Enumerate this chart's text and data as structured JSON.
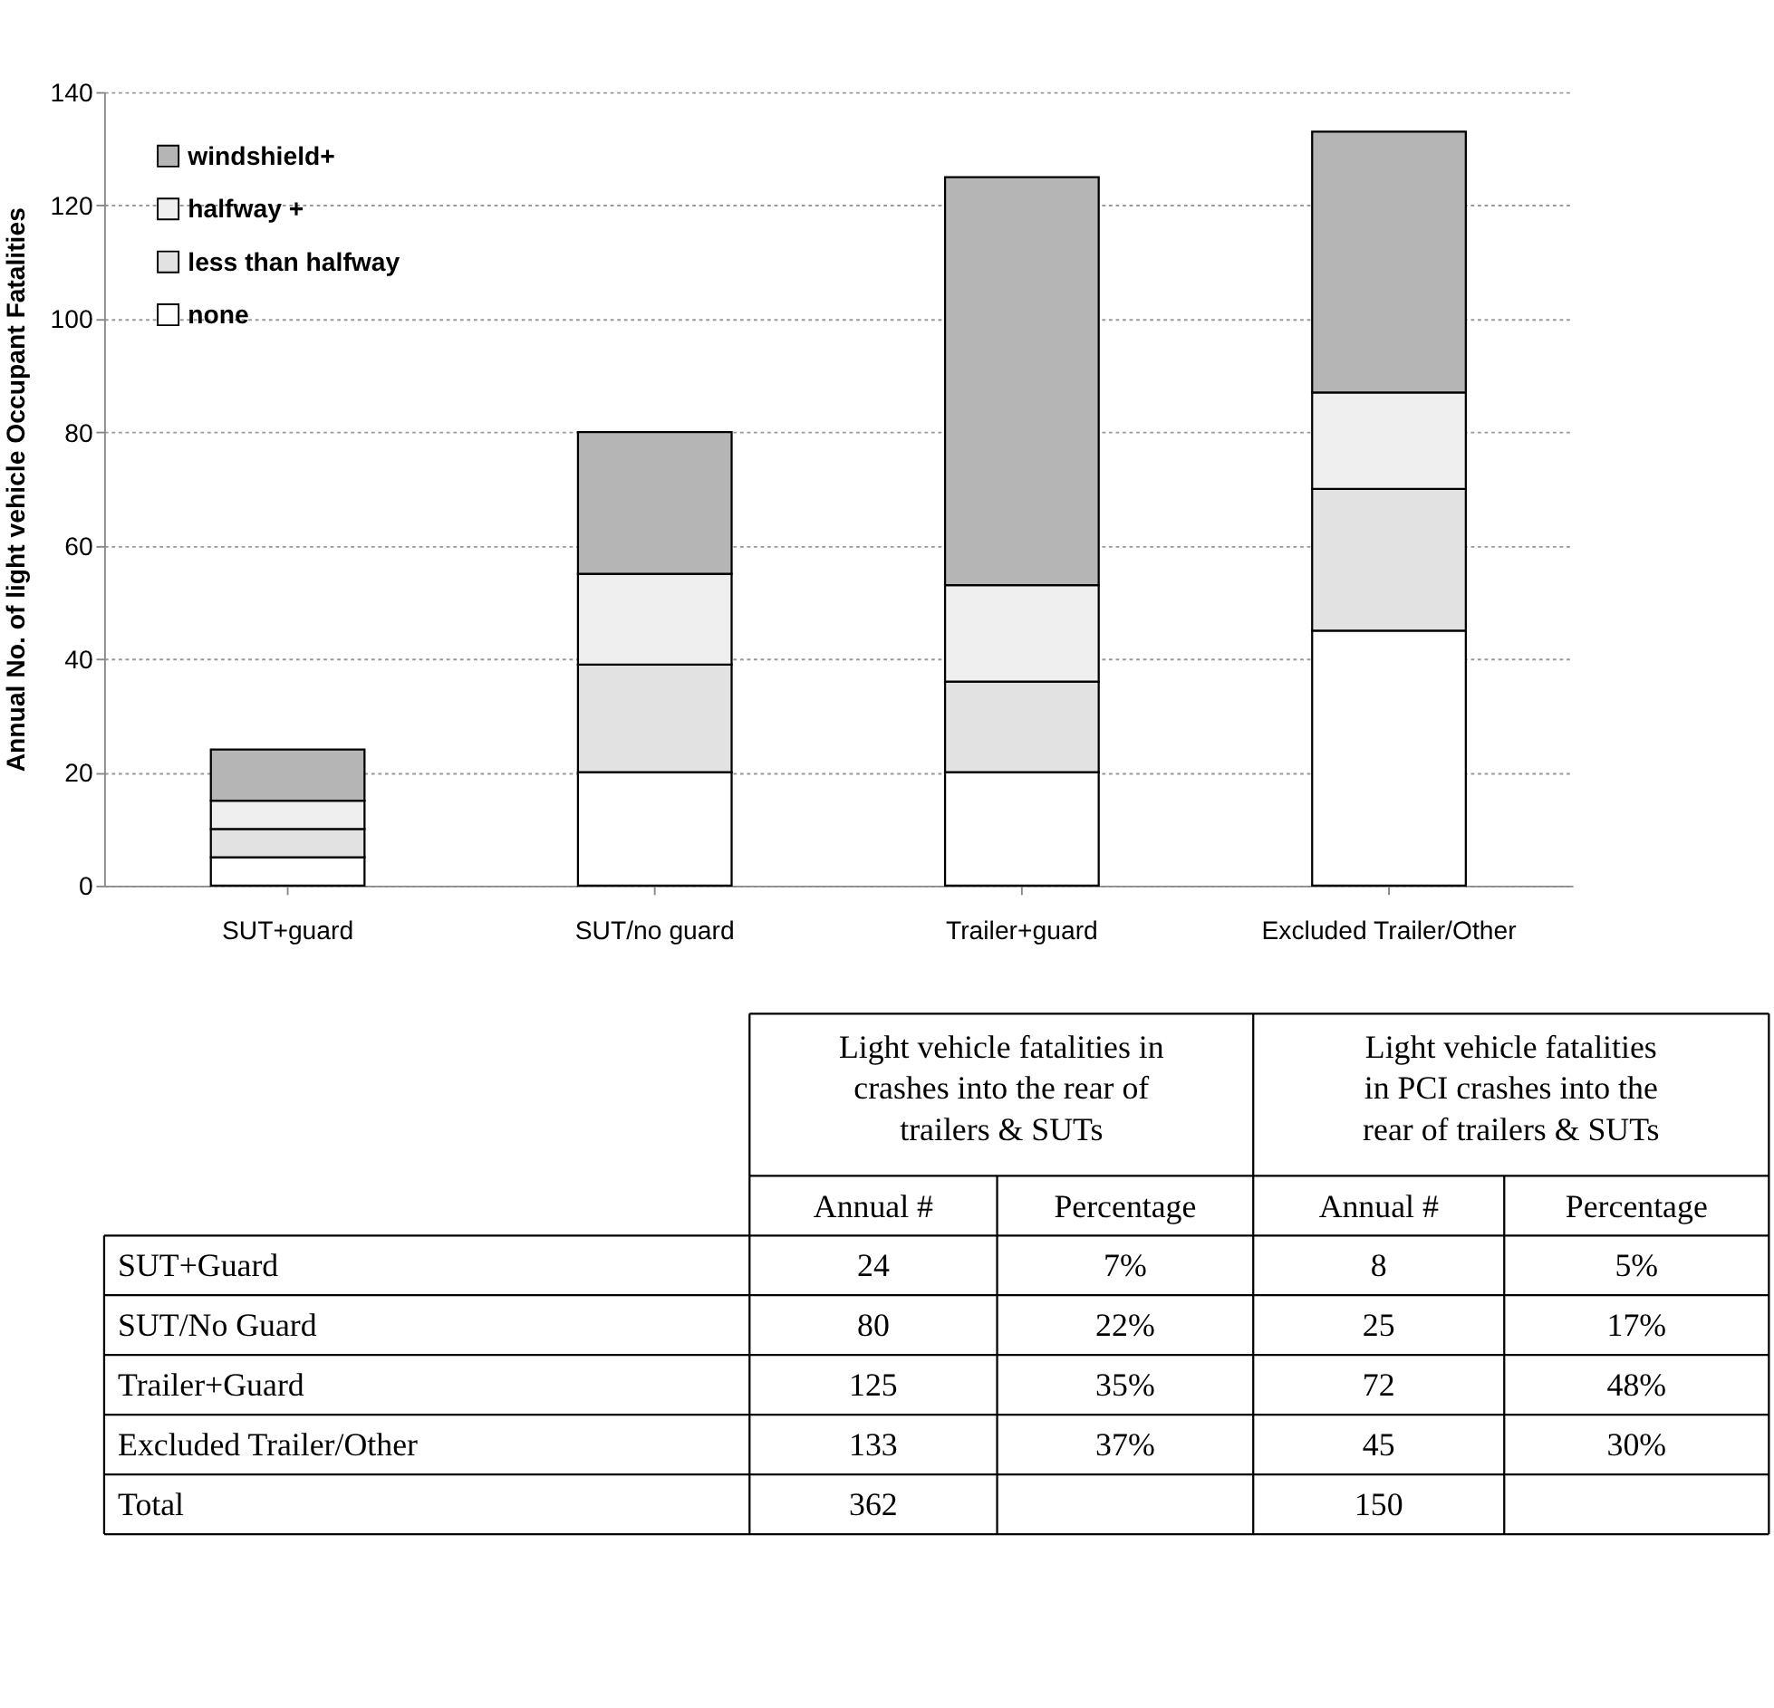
{
  "chart_data": [
    {
      "type": "bar",
      "stacked": true,
      "ylabel": "Annual No. of light vehicle  Occupant Fatalities",
      "categories": [
        "SUT+guard",
        "SUT/no guard",
        "Trailer+guard",
        "Excluded Trailer/Other"
      ],
      "series": [
        {
          "name": "none",
          "color": "#ffffff",
          "values": [
            5,
            20,
            20,
            45
          ]
        },
        {
          "name": "less than halfway",
          "color": "#e2e2e2",
          "values": [
            5,
            19,
            16,
            25
          ]
        },
        {
          "name": "halfway +",
          "color": "#efefef",
          "values": [
            5,
            16,
            17,
            17
          ]
        },
        {
          "name": "windshield+",
          "color": "#b5b5b5",
          "values": [
            9,
            25,
            72,
            46
          ]
        }
      ],
      "ylim": [
        0,
        140
      ],
      "yticks": [
        0,
        20,
        40,
        60,
        80,
        100,
        120,
        140
      ],
      "grid": "y",
      "legend": "top left"
    },
    {
      "type": "other",
      "annotations": [
        "Light vehicle fatalities in crashes into the rear of trailers & SUTs",
        "Light vehicle fatalities in PCI crashes into the rear of trailers & SUTs"
      ],
      "categories": [
        "Annual #",
        "Percentage",
        "Annual #",
        "Percentage"
      ],
      "y_categories": [
        "SUT+Guard",
        "SUT/No Guard",
        "Trailer+Guard",
        "Excluded Trailer/Other",
        "Total"
      ],
      "cell_labels": [
        [
          "24",
          "7%",
          "8",
          "5%"
        ],
        [
          "80",
          "22%",
          "25",
          "17%"
        ],
        [
          "125",
          "35%",
          "72",
          "48%"
        ],
        [
          "133",
          "37%",
          "45",
          "30%"
        ],
        [
          "362",
          null,
          "150",
          null
        ]
      ]
    }
  ]
}
